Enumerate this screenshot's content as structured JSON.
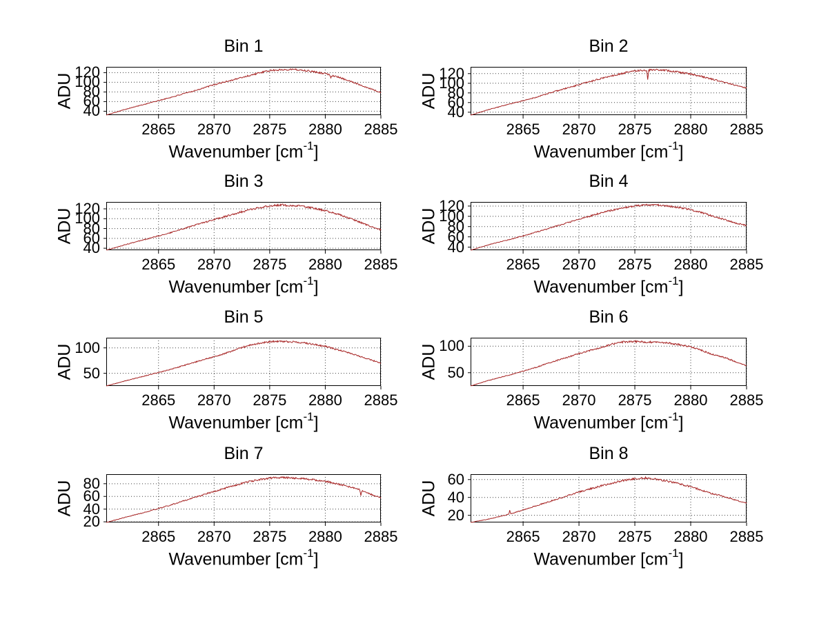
{
  "styles": {
    "background": "#ffffff",
    "line_color": "#a62323",
    "grid_color": "#3c3c3c",
    "axis_color": "#000000",
    "text_color": "#000000"
  },
  "labels": {
    "ylabel": "ADU",
    "xlabel_main": "Wavenumber [cm",
    "xlabel_sup": "-1",
    "xlabel_close": "]"
  },
  "chart_data": [
    {
      "type": "line",
      "title": "Bin 1",
      "xlabel": "Wavenumber [cm^-1]",
      "ylabel": "ADU",
      "xlim": [
        2860.3,
        2885
      ],
      "ylim": [
        32,
        132
      ],
      "x_ticks": [
        2865,
        2870,
        2875,
        2880,
        2885
      ],
      "y_ticks": [
        40,
        60,
        80,
        100,
        120
      ],
      "grid": true,
      "seed": 101,
      "noise_amp": 2.0,
      "spikes": [
        [
          2880.5,
          -6
        ]
      ],
      "anchors": [
        [
          2860.3,
          32
        ],
        [
          2862,
          44
        ],
        [
          2864,
          56
        ],
        [
          2866,
          68
        ],
        [
          2868,
          81
        ],
        [
          2870,
          95
        ],
        [
          2872,
          107
        ],
        [
          2873,
          113
        ],
        [
          2874,
          119
        ],
        [
          2875,
          124
        ],
        [
          2876,
          126
        ],
        [
          2877,
          127
        ],
        [
          2878,
          125
        ],
        [
          2879,
          122
        ],
        [
          2880,
          118
        ],
        [
          2881,
          112
        ],
        [
          2882,
          104
        ],
        [
          2883,
          96
        ],
        [
          2884,
          87
        ],
        [
          2885,
          79
        ]
      ]
    },
    {
      "type": "line",
      "title": "Bin 2",
      "xlabel": "Wavenumber [cm^-1]",
      "ylabel": "ADU",
      "xlim": [
        2860.3,
        2885
      ],
      "ylim": [
        34,
        134
      ],
      "x_ticks": [
        2865,
        2870,
        2875,
        2880,
        2885
      ],
      "y_ticks": [
        40,
        60,
        80,
        100,
        120
      ],
      "grid": true,
      "seed": 202,
      "noise_amp": 2.0,
      "spikes": [
        [
          2876.15,
          -19
        ]
      ],
      "anchors": [
        [
          2860.3,
          34
        ],
        [
          2862,
          46
        ],
        [
          2864,
          58
        ],
        [
          2866,
          70
        ],
        [
          2868,
          84
        ],
        [
          2870,
          97
        ],
        [
          2872,
          110
        ],
        [
          2873,
          116
        ],
        [
          2874,
          121
        ],
        [
          2875,
          126
        ],
        [
          2876,
          127
        ],
        [
          2877,
          128
        ],
        [
          2878,
          126
        ],
        [
          2879,
          123
        ],
        [
          2880,
          119
        ],
        [
          2881,
          114
        ],
        [
          2882,
          108
        ],
        [
          2883,
          102
        ],
        [
          2884,
          96
        ],
        [
          2885,
          90
        ]
      ]
    },
    {
      "type": "line",
      "title": "Bin 3",
      "xlabel": "Wavenumber [cm^-1]",
      "ylabel": "ADU",
      "xlim": [
        2860.3,
        2885
      ],
      "ylim": [
        36,
        134
      ],
      "x_ticks": [
        2865,
        2870,
        2875,
        2880,
        2885
      ],
      "y_ticks": [
        40,
        60,
        80,
        100,
        120
      ],
      "grid": true,
      "seed": 303,
      "noise_amp": 2.2,
      "spikes": [],
      "anchors": [
        [
          2860.3,
          36
        ],
        [
          2862,
          47
        ],
        [
          2864,
          59
        ],
        [
          2866,
          71
        ],
        [
          2868,
          85
        ],
        [
          2870,
          98
        ],
        [
          2872,
          111
        ],
        [
          2873,
          117
        ],
        [
          2874,
          122
        ],
        [
          2875,
          126
        ],
        [
          2876,
          128
        ],
        [
          2877,
          127
        ],
        [
          2878,
          125
        ],
        [
          2879,
          121
        ],
        [
          2880,
          116
        ],
        [
          2881,
          110
        ],
        [
          2882,
          102
        ],
        [
          2883,
          94
        ],
        [
          2884,
          85
        ],
        [
          2885,
          77
        ]
      ]
    },
    {
      "type": "line",
      "title": "Bin 4",
      "xlabel": "Wavenumber [cm^-1]",
      "ylabel": "ADU",
      "xlim": [
        2860.3,
        2885
      ],
      "ylim": [
        34,
        128
      ],
      "x_ticks": [
        2865,
        2870,
        2875,
        2880,
        2885
      ],
      "y_ticks": [
        40,
        60,
        80,
        100,
        120
      ],
      "grid": true,
      "seed": 404,
      "noise_amp": 1.9,
      "spikes": [],
      "anchors": [
        [
          2860.3,
          34
        ],
        [
          2862,
          45
        ],
        [
          2864,
          56
        ],
        [
          2866,
          68
        ],
        [
          2868,
          81
        ],
        [
          2870,
          94
        ],
        [
          2872,
          107
        ],
        [
          2873,
          112
        ],
        [
          2874,
          117
        ],
        [
          2875,
          120
        ],
        [
          2876,
          122
        ],
        [
          2877,
          122
        ],
        [
          2878,
          120
        ],
        [
          2879,
          117
        ],
        [
          2880,
          113
        ],
        [
          2881,
          107
        ],
        [
          2882,
          100
        ],
        [
          2883,
          94
        ],
        [
          2884,
          87
        ],
        [
          2885,
          82
        ]
      ]
    },
    {
      "type": "line",
      "title": "Bin 5",
      "xlabel": "Wavenumber [cm^-1]",
      "ylabel": "ADU",
      "xlim": [
        2860.3,
        2885
      ],
      "ylim": [
        25,
        120
      ],
      "x_ticks": [
        2865,
        2870,
        2875,
        2880,
        2885
      ],
      "y_ticks": [
        50,
        100
      ],
      "grid": true,
      "seed": 505,
      "noise_amp": 1.8,
      "spikes": [],
      "anchors": [
        [
          2860.3,
          25
        ],
        [
          2862,
          35
        ],
        [
          2864,
          46
        ],
        [
          2866,
          57
        ],
        [
          2868,
          70
        ],
        [
          2870,
          83
        ],
        [
          2871,
          89
        ],
        [
          2872,
          97
        ],
        [
          2873,
          104
        ],
        [
          2874,
          109
        ],
        [
          2875,
          112
        ],
        [
          2876,
          113
        ],
        [
          2877,
          112
        ],
        [
          2878,
          110
        ],
        [
          2879,
          107
        ],
        [
          2880,
          103
        ],
        [
          2881,
          97
        ],
        [
          2882,
          91
        ],
        [
          2883,
          84
        ],
        [
          2884,
          77
        ],
        [
          2885,
          70
        ]
      ]
    },
    {
      "type": "line",
      "title": "Bin 6",
      "xlabel": "Wavenumber [cm^-1]",
      "ylabel": "ADU",
      "xlim": [
        2860.3,
        2885
      ],
      "ylim": [
        25,
        116
      ],
      "x_ticks": [
        2865,
        2870,
        2875,
        2880,
        2885
      ],
      "y_ticks": [
        50,
        100
      ],
      "grid": true,
      "seed": 606,
      "noise_amp": 1.9,
      "spikes": [],
      "anchors": [
        [
          2860.3,
          25
        ],
        [
          2862,
          36
        ],
        [
          2864,
          47
        ],
        [
          2866,
          59
        ],
        [
          2868,
          73
        ],
        [
          2870,
          86
        ],
        [
          2871,
          92
        ],
        [
          2872,
          98
        ],
        [
          2873,
          104
        ],
        [
          2874,
          108
        ],
        [
          2875,
          109
        ],
        [
          2876,
          108
        ],
        [
          2877,
          107
        ],
        [
          2878,
          106
        ],
        [
          2879,
          103
        ],
        [
          2880,
          99
        ],
        [
          2881,
          92
        ],
        [
          2882,
          84
        ],
        [
          2883,
          79
        ],
        [
          2884,
          71
        ],
        [
          2885,
          63
        ]
      ]
    },
    {
      "type": "line",
      "title": "Bin 7",
      "xlabel": "Wavenumber [cm^-1]",
      "ylabel": "ADU",
      "xlim": [
        2860.3,
        2885
      ],
      "ylim": [
        19,
        95
      ],
      "x_ticks": [
        2865,
        2870,
        2875,
        2880,
        2885
      ],
      "y_ticks": [
        20,
        40,
        60,
        80
      ],
      "grid": true,
      "seed": 707,
      "noise_amp": 1.6,
      "spikes": [
        [
          2883.2,
          -8
        ]
      ],
      "anchors": [
        [
          2860.3,
          19
        ],
        [
          2862,
          27
        ],
        [
          2864,
          36
        ],
        [
          2866,
          46
        ],
        [
          2868,
          57
        ],
        [
          2870,
          68
        ],
        [
          2872,
          78
        ],
        [
          2873,
          83
        ],
        [
          2874,
          86
        ],
        [
          2875,
          89
        ],
        [
          2876,
          90
        ],
        [
          2877,
          89
        ],
        [
          2878,
          88
        ],
        [
          2879,
          86
        ],
        [
          2880,
          84
        ],
        [
          2881,
          80
        ],
        [
          2882,
          76
        ],
        [
          2883,
          71
        ],
        [
          2884,
          64
        ],
        [
          2885,
          58
        ]
      ]
    },
    {
      "type": "line",
      "title": "Bin 8",
      "xlabel": "Wavenumber [cm^-1]",
      "ylabel": "ADU",
      "xlim": [
        2860.3,
        2885
      ],
      "ylim": [
        12,
        66
      ],
      "x_ticks": [
        2865,
        2870,
        2875,
        2880,
        2885
      ],
      "y_ticks": [
        20,
        40,
        60
      ],
      "grid": true,
      "seed": 808,
      "noise_amp": 1.2,
      "spikes": [
        [
          2863.8,
          4
        ]
      ],
      "anchors": [
        [
          2860.3,
          12
        ],
        [
          2862,
          16
        ],
        [
          2864,
          22
        ],
        [
          2866,
          30
        ],
        [
          2868,
          38
        ],
        [
          2870,
          46
        ],
        [
          2872,
          53
        ],
        [
          2873,
          56
        ],
        [
          2874,
          59
        ],
        [
          2875,
          61
        ],
        [
          2876,
          62
        ],
        [
          2877,
          60
        ],
        [
          2878,
          58
        ],
        [
          2879,
          55
        ],
        [
          2880,
          52
        ],
        [
          2881,
          48
        ],
        [
          2882,
          44
        ],
        [
          2883,
          41
        ],
        [
          2884,
          37
        ],
        [
          2885,
          34
        ]
      ]
    }
  ]
}
